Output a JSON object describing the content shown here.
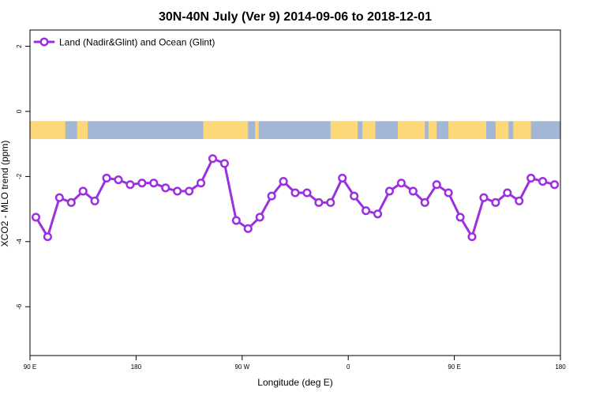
{
  "chart_data": {
    "type": "line",
    "title": "30N-40N July (Ver 9)   2014-09-06 to 2018-12-01",
    "xlabel": "Longitude (deg E)",
    "ylabel": "XCO2 - MLO trend (ppm)",
    "x_ticks": [
      {
        "value": 90,
        "label": "90 E"
      },
      {
        "value": 180,
        "label": "180"
      },
      {
        "value": 270,
        "label": "90 W"
      },
      {
        "value": 360,
        "label": "0"
      },
      {
        "value": 450,
        "label": "90 E"
      },
      {
        "value": 540,
        "label": "180"
      }
    ],
    "y_ticks": [
      {
        "value": 2,
        "label": "2"
      },
      {
        "value": 0,
        "label": "0"
      },
      {
        "value": -2,
        "label": "-2"
      },
      {
        "value": -4,
        "label": "-4"
      },
      {
        "value": -6,
        "label": "-6"
      }
    ],
    "xlim": [
      90,
      540
    ],
    "ylim": [
      -7.5,
      2.5
    ],
    "grid": false,
    "legend_position": "top-left",
    "line_color": "#9b30e0",
    "land_color": "#fdd878",
    "ocean_color": "#a3b6d6",
    "series": [
      {
        "name": "Land (Nadir&Glint) and Ocean (Glint)",
        "x": [
          95,
          105,
          115,
          125,
          135,
          145,
          155,
          165,
          175,
          185,
          195,
          205,
          215,
          225,
          235,
          245,
          255,
          265,
          275,
          285,
          295,
          305,
          315,
          325,
          335,
          345,
          355,
          365,
          375,
          385,
          395,
          405,
          415,
          425,
          435,
          445,
          455,
          465,
          475,
          485,
          495,
          505,
          515,
          525,
          535
        ],
        "values": [
          -3.25,
          -3.85,
          -2.65,
          -2.8,
          -2.45,
          -2.75,
          -2.05,
          -2.1,
          -2.25,
          -2.2,
          -2.2,
          -2.35,
          -2.45,
          -2.45,
          -2.2,
          -1.45,
          -1.6,
          -3.35,
          -3.6,
          -3.25,
          -2.6,
          -2.15,
          -2.5,
          -2.5,
          -2.8,
          -2.8,
          -2.05,
          -2.6,
          -3.05,
          -3.15,
          -2.45,
          -2.2,
          -2.45,
          -2.8,
          -2.25,
          -2.5,
          -3.25,
          -3.85,
          -2.65,
          -2.8,
          -2.5,
          -2.75,
          -2.05,
          -2.15,
          -2.25
        ]
      }
    ],
    "surface_band": {
      "y_range": [
        -0.85,
        -0.3
      ],
      "land_intervals": [
        [
          90,
          120
        ],
        [
          130,
          139
        ],
        [
          237,
          275
        ],
        [
          281,
          284
        ],
        [
          345,
          368
        ],
        [
          372,
          383
        ],
        [
          402,
          425
        ],
        [
          428,
          435
        ],
        [
          445,
          477
        ],
        [
          485,
          496
        ],
        [
          500,
          515
        ]
      ]
    }
  }
}
